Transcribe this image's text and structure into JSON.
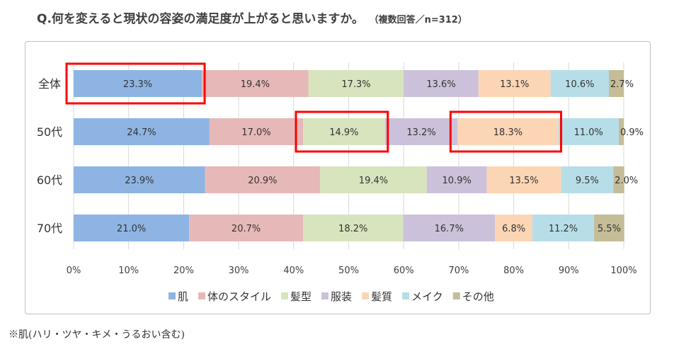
{
  "title": "Q.何を変えると現状の容姿の満足度が上がると思いますか。",
  "subtitle": "（複数回答／n=312）",
  "footnote": "※肌(ハリ・ツヤ・キメ・うるおい含む)",
  "chart_data": {
    "type": "bar",
    "orientation": "horizontal",
    "stacked": "percent",
    "categories": [
      "全体",
      "50代",
      "60代",
      "70代"
    ],
    "series": [
      {
        "name": "肌",
        "color": "#8eb4e3",
        "values": [
          23.3,
          24.7,
          23.9,
          21.0
        ],
        "labels": [
          "23.3%",
          "24.7%",
          "23.9%",
          "21.0%"
        ]
      },
      {
        "name": "体のスタイル",
        "color": "#e6b9b8",
        "values": [
          19.4,
          17.0,
          20.9,
          20.7
        ],
        "labels": [
          "19.4%",
          "17.0%",
          "20.9%",
          "20.7%"
        ]
      },
      {
        "name": "髪型",
        "color": "#d7e4bd",
        "values": [
          17.3,
          14.9,
          19.4,
          18.2
        ],
        "labels": [
          "17.3%",
          "14.9%",
          "19.4%",
          "18.2%"
        ]
      },
      {
        "name": "服装",
        "color": "#ccc1da",
        "values": [
          13.6,
          13.2,
          10.9,
          16.7
        ],
        "labels": [
          "13.6%",
          "13.2%",
          "10.9%",
          "16.7%"
        ]
      },
      {
        "name": "髪質",
        "color": "#fcd5b5",
        "values": [
          13.1,
          18.3,
          13.5,
          6.8
        ],
        "labels": [
          "13.1%",
          "18.3%",
          "13.5%",
          "6.8%"
        ]
      },
      {
        "name": "メイク",
        "color": "#b7dee8",
        "values": [
          10.6,
          11.0,
          9.5,
          11.2
        ],
        "labels": [
          "10.6%",
          "11.0%",
          "9.5%",
          "11.2%"
        ]
      },
      {
        "name": "その他",
        "color": "#c4bd97",
        "values": [
          2.7,
          0.9,
          2.0,
          5.5
        ],
        "labels": [
          "2.7%",
          "0.9%",
          "2.0%",
          "5.5%"
        ]
      }
    ],
    "xlim": [
      0,
      100
    ],
    "xticks": [
      "0%",
      "10%",
      "20%",
      "30%",
      "40%",
      "50%",
      "60%",
      "70%",
      "80%",
      "90%",
      "100%"
    ],
    "grid": "vertical",
    "legend": "bottom",
    "highlights": [
      {
        "category": "全体",
        "series": "肌",
        "color": "#ff0000"
      },
      {
        "category": "50代",
        "series": "髪型",
        "color": "#ff0000"
      },
      {
        "category": "50代",
        "series": "髪質",
        "color": "#ff0000"
      }
    ]
  }
}
